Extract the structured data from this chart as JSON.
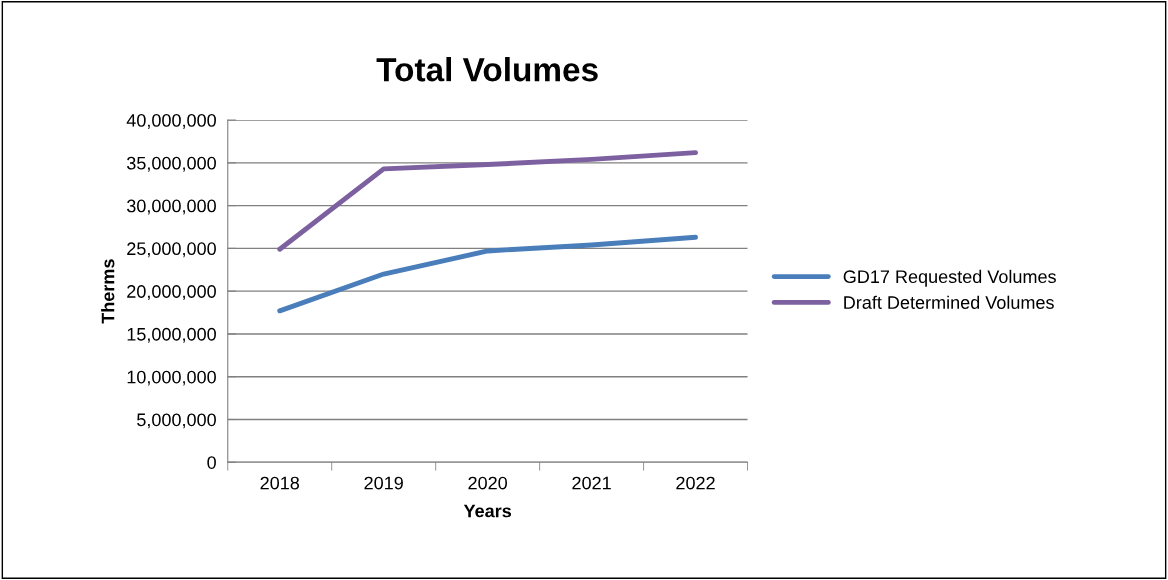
{
  "chart_data": {
    "type": "line",
    "title": "Total Volumes",
    "xlabel": "Years",
    "ylabel": "Therms",
    "categories": [
      "2018",
      "2019",
      "2020",
      "2021",
      "2022"
    ],
    "series": [
      {
        "name": "GD17 Requested Volumes",
        "color": "#4a7ebb",
        "values": [
          17700000,
          22000000,
          24700000,
          25400000,
          26300000
        ]
      },
      {
        "name": "Draft Determined Volumes",
        "color": "#7d60a0",
        "values": [
          24900000,
          34300000,
          34800000,
          35400000,
          36200000
        ]
      }
    ],
    "ylim": [
      0,
      40000000
    ],
    "yticks": [
      {
        "value": 0,
        "label": "0"
      },
      {
        "value": 5000000,
        "label": "5,000,000"
      },
      {
        "value": 10000000,
        "label": "10,000,000"
      },
      {
        "value": 15000000,
        "label": "15,000,000"
      },
      {
        "value": 20000000,
        "label": "20,000,000"
      },
      {
        "value": 25000000,
        "label": "25,000,000"
      },
      {
        "value": 30000000,
        "label": "30,000,000"
      },
      {
        "value": 35000000,
        "label": "35,000,000"
      },
      {
        "value": 40000000,
        "label": "40,000,000"
      }
    ],
    "grid": "y",
    "legend": "right",
    "marker": "none",
    "line_style": "solid"
  }
}
